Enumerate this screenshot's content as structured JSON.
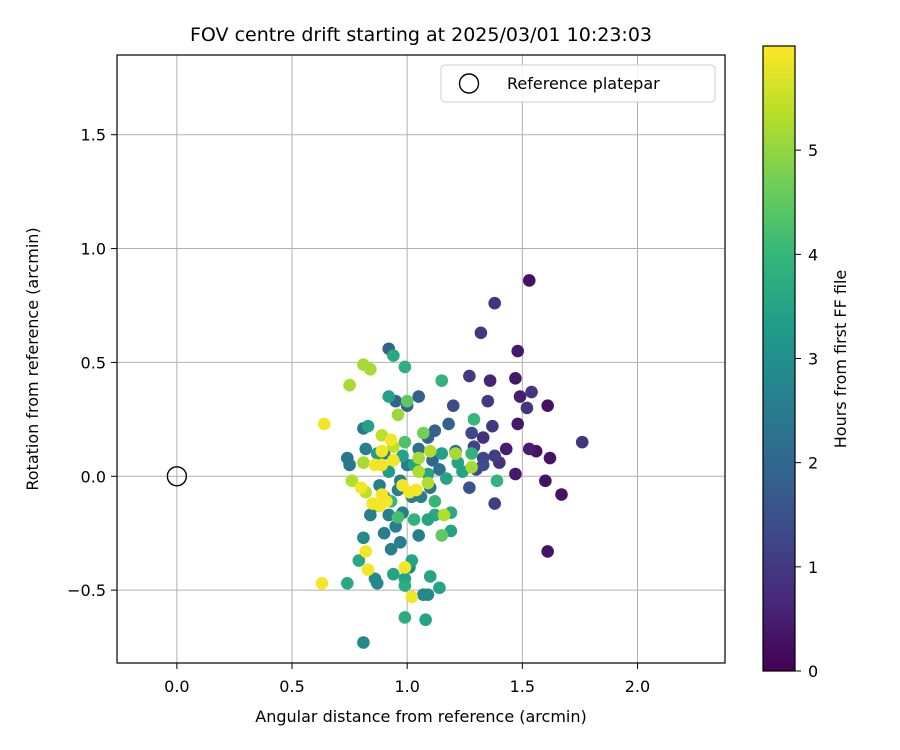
{
  "chart_data": {
    "type": "scatter",
    "title": "FOV centre drift starting at 2025/03/01 10:23:03",
    "xlabel": "Angular distance from reference (arcmin)",
    "ylabel": "Rotation from reference (arcmin)",
    "xlim": [
      -0.26,
      2.38
    ],
    "ylim": [
      -0.82,
      1.85
    ],
    "xticks": [
      0.0,
      0.5,
      1.0,
      1.5,
      2.0
    ],
    "xtick_labels": [
      "0.0",
      "0.5",
      "1.0",
      "1.5",
      "2.0"
    ],
    "yticks": [
      -0.5,
      0.0,
      0.5,
      1.0,
      1.5
    ],
    "ytick_labels": [
      "−0.5",
      "0.0",
      "0.5",
      "1.0",
      "1.5"
    ],
    "grid": true,
    "legend": {
      "placement": "top-right",
      "entries": [
        "Reference platepar"
      ]
    },
    "reference_point": {
      "x": 0.0,
      "y": 0.0,
      "label": "Reference platepar"
    },
    "colorbar": {
      "label": "Hours from first FF file",
      "colormap": "viridis",
      "range": [
        0,
        6
      ],
      "ticks": [
        0,
        1,
        2,
        3,
        4,
        5
      ],
      "tick_labels": [
        "0",
        "1",
        "2",
        "3",
        "4",
        "5"
      ],
      "colors": [
        "#440154",
        "#482878",
        "#3e4a89",
        "#31688e",
        "#26828e",
        "#1f9e89",
        "#35b779",
        "#6ece58",
        "#b5de2b",
        "#fde725"
      ]
    },
    "points": [
      {
        "x": 1.53,
        "y": 0.86,
        "t": 0.3
      },
      {
        "x": 1.62,
        "y": 0.08,
        "t": 0.3
      },
      {
        "x": 1.61,
        "y": 0.31,
        "t": 0.3
      },
      {
        "x": 1.67,
        "y": -0.08,
        "t": 0.3
      },
      {
        "x": 1.61,
        "y": -0.33,
        "t": 0.3
      },
      {
        "x": 1.6,
        "y": -0.02,
        "t": 0.3
      },
      {
        "x": 1.56,
        "y": 0.11,
        "t": 0.3
      },
      {
        "x": 1.47,
        "y": 0.43,
        "t": 0.4
      },
      {
        "x": 1.48,
        "y": 0.55,
        "t": 0.4
      },
      {
        "x": 1.47,
        "y": 0.01,
        "t": 0.4
      },
      {
        "x": 1.48,
        "y": 0.23,
        "t": 0.4
      },
      {
        "x": 1.49,
        "y": 0.35,
        "t": 0.5
      },
      {
        "x": 1.53,
        "y": 0.12,
        "t": 0.5
      },
      {
        "x": 1.43,
        "y": 0.12,
        "t": 0.5
      },
      {
        "x": 1.36,
        "y": 0.42,
        "t": 0.6
      },
      {
        "x": 1.38,
        "y": 0.76,
        "t": 0.9
      },
      {
        "x": 1.54,
        "y": 0.37,
        "t": 0.9
      },
      {
        "x": 1.52,
        "y": 0.3,
        "t": 0.9
      },
      {
        "x": 1.76,
        "y": 0.15,
        "t": 0.9
      },
      {
        "x": 1.32,
        "y": 0.63,
        "t": 1.0
      },
      {
        "x": 1.35,
        "y": 0.33,
        "t": 1.0
      },
      {
        "x": 1.37,
        "y": 0.22,
        "t": 1.0
      },
      {
        "x": 1.4,
        "y": 0.06,
        "t": 0.8
      },
      {
        "x": 1.33,
        "y": 0.17,
        "t": 0.8
      },
      {
        "x": 1.38,
        "y": -0.12,
        "t": 1.1
      },
      {
        "x": 1.38,
        "y": 0.09,
        "t": 1.1
      },
      {
        "x": 1.27,
        "y": 0.44,
        "t": 1.0
      },
      {
        "x": 1.29,
        "y": 0.13,
        "t": 1.2
      },
      {
        "x": 1.33,
        "y": 0.08,
        "t": 1.2
      },
      {
        "x": 1.3,
        "y": 0.03,
        "t": 1.3
      },
      {
        "x": 1.2,
        "y": 0.31,
        "t": 1.4
      },
      {
        "x": 1.28,
        "y": 0.19,
        "t": 1.3
      },
      {
        "x": 1.33,
        "y": 0.05,
        "t": 1.4
      },
      {
        "x": 1.27,
        "y": -0.05,
        "t": 1.5
      },
      {
        "x": 0.92,
        "y": 0.56,
        "t": 1.9
      },
      {
        "x": 1.05,
        "y": 0.35,
        "t": 1.8
      },
      {
        "x": 1.0,
        "y": 0.31,
        "t": 1.9
      },
      {
        "x": 0.95,
        "y": 0.33,
        "t": 1.9
      },
      {
        "x": 1.18,
        "y": 0.23,
        "t": 1.9
      },
      {
        "x": 1.12,
        "y": 0.2,
        "t": 1.9
      },
      {
        "x": 1.09,
        "y": 0.17,
        "t": 1.9
      },
      {
        "x": 1.21,
        "y": 0.11,
        "t": 2.0
      },
      {
        "x": 1.11,
        "y": 0.07,
        "t": 2.0
      },
      {
        "x": 1.05,
        "y": 0.12,
        "t": 2.2
      },
      {
        "x": 1.14,
        "y": 0.03,
        "t": 2.2
      },
      {
        "x": 1.1,
        "y": -0.05,
        "t": 2.3
      },
      {
        "x": 0.74,
        "y": 0.08,
        "t": 2.4
      },
      {
        "x": 0.75,
        "y": 0.05,
        "t": 2.4
      },
      {
        "x": 0.81,
        "y": 0.21,
        "t": 2.4
      },
      {
        "x": 0.82,
        "y": 0.12,
        "t": 2.6
      },
      {
        "x": 0.9,
        "y": 0.1,
        "t": 2.6
      },
      {
        "x": 1.0,
        "y": 0.05,
        "t": 2.6
      },
      {
        "x": 0.97,
        "y": -0.02,
        "t": 2.6
      },
      {
        "x": 0.96,
        "y": -0.06,
        "t": 2.6
      },
      {
        "x": 0.88,
        "y": -0.04,
        "t": 2.6
      },
      {
        "x": 0.9,
        "y": -0.09,
        "t": 2.6
      },
      {
        "x": 1.02,
        "y": -0.09,
        "t": 2.6
      },
      {
        "x": 1.06,
        "y": -0.09,
        "t": 2.6
      },
      {
        "x": 0.86,
        "y": -0.13,
        "t": 2.6
      },
      {
        "x": 0.84,
        "y": -0.17,
        "t": 2.6
      },
      {
        "x": 0.92,
        "y": -0.17,
        "t": 2.6
      },
      {
        "x": 0.98,
        "y": -0.16,
        "t": 2.6
      },
      {
        "x": 0.95,
        "y": -0.22,
        "t": 2.6
      },
      {
        "x": 0.9,
        "y": -0.25,
        "t": 2.6
      },
      {
        "x": 0.93,
        "y": -0.32,
        "t": 2.6
      },
      {
        "x": 0.97,
        "y": -0.29,
        "t": 2.6
      },
      {
        "x": 1.05,
        "y": -0.26,
        "t": 2.6
      },
      {
        "x": 1.01,
        "y": -0.4,
        "t": 2.8
      },
      {
        "x": 0.81,
        "y": -0.27,
        "t": 2.8
      },
      {
        "x": 0.86,
        "y": -0.45,
        "t": 2.8
      },
      {
        "x": 0.87,
        "y": -0.47,
        "t": 2.8
      },
      {
        "x": 1.07,
        "y": -0.52,
        "t": 2.8
      },
      {
        "x": 1.09,
        "y": -0.52,
        "t": 2.8
      },
      {
        "x": 0.81,
        "y": -0.73,
        "t": 2.8
      },
      {
        "x": 0.92,
        "y": 0.35,
        "t": 3.4
      },
      {
        "x": 0.94,
        "y": 0.53,
        "t": 3.6
      },
      {
        "x": 0.83,
        "y": 0.22,
        "t": 3.4
      },
      {
        "x": 0.87,
        "y": 0.1,
        "t": 3.3
      },
      {
        "x": 0.92,
        "y": 0.02,
        "t": 3.3
      },
      {
        "x": 0.98,
        "y": 0.09,
        "t": 3.5
      },
      {
        "x": 1.03,
        "y": 0.05,
        "t": 3.5
      },
      {
        "x": 1.09,
        "y": 0.01,
        "t": 3.5
      },
      {
        "x": 1.15,
        "y": 0.1,
        "t": 3.4
      },
      {
        "x": 1.17,
        "y": -0.01,
        "t": 3.5
      },
      {
        "x": 1.22,
        "y": 0.06,
        "t": 3.5
      },
      {
        "x": 1.24,
        "y": 0.02,
        "t": 3.5
      },
      {
        "x": 1.19,
        "y": -0.16,
        "t": 3.6
      },
      {
        "x": 1.19,
        "y": -0.24,
        "t": 3.5
      },
      {
        "x": 1.12,
        "y": -0.17,
        "t": 3.6
      },
      {
        "x": 1.09,
        "y": -0.19,
        "t": 3.5
      },
      {
        "x": 0.94,
        "y": -0.43,
        "t": 3.5
      },
      {
        "x": 0.99,
        "y": -0.45,
        "t": 3.5
      },
      {
        "x": 1.02,
        "y": -0.37,
        "t": 3.5
      },
      {
        "x": 1.14,
        "y": -0.49,
        "t": 3.5
      },
      {
        "x": 1.1,
        "y": -0.44,
        "t": 3.5
      },
      {
        "x": 1.08,
        "y": -0.63,
        "t": 3.5
      },
      {
        "x": 0.99,
        "y": -0.62,
        "t": 3.7
      },
      {
        "x": 0.99,
        "y": -0.48,
        "t": 3.7
      },
      {
        "x": 0.79,
        "y": -0.37,
        "t": 3.6
      },
      {
        "x": 0.74,
        "y": -0.47,
        "t": 3.6
      },
      {
        "x": 0.99,
        "y": 0.48,
        "t": 3.8
      },
      {
        "x": 1.15,
        "y": 0.42,
        "t": 3.9
      },
      {
        "x": 1.29,
        "y": 0.25,
        "t": 4.0
      },
      {
        "x": 1.28,
        "y": 0.1,
        "t": 3.9
      },
      {
        "x": 1.39,
        "y": -0.02,
        "t": 3.9
      },
      {
        "x": 1.12,
        "y": -0.11,
        "t": 4.0
      },
      {
        "x": 1.03,
        "y": -0.19,
        "t": 3.9
      },
      {
        "x": 0.93,
        "y": -0.11,
        "t": 4.0
      },
      {
        "x": 0.96,
        "y": -0.18,
        "t": 4.2
      },
      {
        "x": 0.99,
        "y": 0.15,
        "t": 4.3
      },
      {
        "x": 1.0,
        "y": 0.33,
        "t": 4.5
      },
      {
        "x": 1.07,
        "y": 0.19,
        "t": 4.7
      },
      {
        "x": 1.15,
        "y": -0.26,
        "t": 4.5
      },
      {
        "x": 0.75,
        "y": 0.4,
        "t": 5.2
      },
      {
        "x": 0.81,
        "y": 0.49,
        "t": 5.2
      },
      {
        "x": 0.84,
        "y": 0.47,
        "t": 5.2
      },
      {
        "x": 0.96,
        "y": 0.27,
        "t": 5.1
      },
      {
        "x": 0.89,
        "y": 0.18,
        "t": 5.4
      },
      {
        "x": 0.94,
        "y": 0.13,
        "t": 5.4
      },
      {
        "x": 0.81,
        "y": 0.06,
        "t": 5.2
      },
      {
        "x": 1.05,
        "y": 0.08,
        "t": 5.2
      },
      {
        "x": 1.1,
        "y": 0.11,
        "t": 5.3
      },
      {
        "x": 1.21,
        "y": 0.1,
        "t": 5.2
      },
      {
        "x": 1.28,
        "y": 0.04,
        "t": 5.2
      },
      {
        "x": 1.05,
        "y": 0.02,
        "t": 5.3
      },
      {
        "x": 1.09,
        "y": -0.03,
        "t": 5.3
      },
      {
        "x": 0.76,
        "y": -0.02,
        "t": 5.3
      },
      {
        "x": 0.82,
        "y": -0.07,
        "t": 5.4
      },
      {
        "x": 1.16,
        "y": -0.17,
        "t": 5.3
      },
      {
        "x": 0.64,
        "y": 0.23,
        "t": 5.9
      },
      {
        "x": 0.86,
        "y": 0.05,
        "t": 5.9
      },
      {
        "x": 0.89,
        "y": 0.11,
        "t": 5.9
      },
      {
        "x": 0.93,
        "y": 0.16,
        "t": 5.9
      },
      {
        "x": 0.89,
        "y": 0.05,
        "t": 5.9
      },
      {
        "x": 0.94,
        "y": 0.07,
        "t": 5.9
      },
      {
        "x": 0.8,
        "y": -0.05,
        "t": 5.9
      },
      {
        "x": 0.89,
        "y": -0.08,
        "t": 5.9
      },
      {
        "x": 0.91,
        "y": -0.11,
        "t": 5.9
      },
      {
        "x": 0.98,
        "y": -0.04,
        "t": 5.9
      },
      {
        "x": 1.01,
        "y": -0.07,
        "t": 5.9
      },
      {
        "x": 1.04,
        "y": -0.06,
        "t": 5.9
      },
      {
        "x": 0.85,
        "y": -0.12,
        "t": 5.9
      },
      {
        "x": 0.88,
        "y": -0.13,
        "t": 5.9
      },
      {
        "x": 0.99,
        "y": -0.4,
        "t": 5.9
      },
      {
        "x": 0.82,
        "y": -0.33,
        "t": 5.9
      },
      {
        "x": 0.83,
        "y": -0.41,
        "t": 5.9
      },
      {
        "x": 1.02,
        "y": -0.53,
        "t": 5.9
      },
      {
        "x": 0.63,
        "y": -0.47,
        "t": 5.9
      }
    ]
  }
}
